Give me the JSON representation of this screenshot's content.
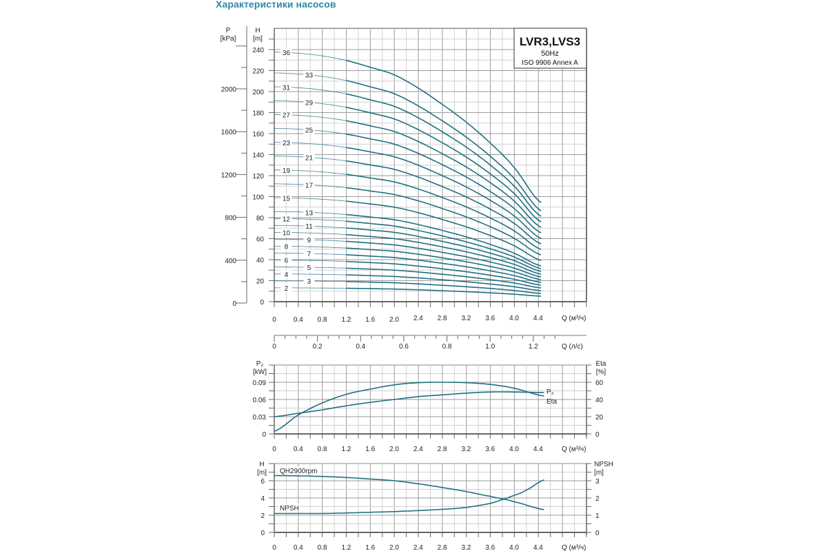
{
  "page": {
    "title": "Характеристики насосов"
  },
  "colors": {
    "curve": "#1d6f82",
    "title": "#2b8aa6",
    "grid_major": "#9a9a9a",
    "grid_minor": "#d0d0d0",
    "axis": "#666666"
  },
  "chart_data": [
    {
      "type": "line",
      "name": "head-curves",
      "title": "LVR3,LVS3",
      "subtitle": "50Hz",
      "note": "ISO 9906 Annex A",
      "xlabel": "Q (м³/ч)",
      "xlabel2": "Q (л/с)",
      "ylabel": "H",
      "ylabel_unit": "[m]",
      "ylabel2": "P",
      "ylabel2_unit": "[kPa]",
      "xlim": [
        0,
        5.2
      ],
      "ylim": [
        0,
        260
      ],
      "x_ticks": [
        "0",
        "0.4",
        "0.8",
        "1.2",
        "1.6",
        "2.0",
        "2.4",
        "2.8",
        "3.2",
        "3.6",
        "4.0",
        "4.4"
      ],
      "x_tick_values": [
        0,
        0.4,
        0.8,
        1.2,
        1.6,
        2.0,
        2.4,
        2.8,
        3.2,
        3.6,
        4.0,
        4.4
      ],
      "x2_ticks": [
        "0",
        "0.2",
        "0.4",
        "0.6",
        "0.8",
        "1.0",
        "1.2"
      ],
      "x2_tick_values": [
        0,
        0.2,
        0.4,
        0.6,
        0.8,
        1.0,
        1.2
      ],
      "y_ticks": [
        "0",
        "20",
        "40",
        "60",
        "80",
        "100",
        "120",
        "140",
        "160",
        "180",
        "200",
        "220",
        "240"
      ],
      "y_tick_values": [
        0,
        20,
        40,
        60,
        80,
        100,
        120,
        140,
        160,
        180,
        200,
        220,
        240
      ],
      "y2_ticks": [
        "0",
        "400",
        "800",
        "1200",
        "1600",
        "2000"
      ],
      "y2_tick_values": [
        0,
        400,
        800,
        1200,
        1600,
        2000
      ],
      "grid": true,
      "stage_head_per_stage_q": [
        0,
        0.4,
        0.8,
        1.2,
        1.6,
        2.0,
        2.4,
        2.8,
        3.2,
        3.6,
        4.0,
        4.45
      ],
      "stage_head_per_stage_h": [
        6.6,
        6.57,
        6.5,
        6.38,
        6.2,
        6.0,
        5.65,
        5.22,
        4.75,
        4.2,
        3.55,
        2.62
      ],
      "series": [
        {
          "name": "2",
          "stages": 2
        },
        {
          "name": "3",
          "stages": 3
        },
        {
          "name": "4",
          "stages": 4
        },
        {
          "name": "5",
          "stages": 5
        },
        {
          "name": "6",
          "stages": 6
        },
        {
          "name": "7",
          "stages": 7
        },
        {
          "name": "8",
          "stages": 8
        },
        {
          "name": "9",
          "stages": 9
        },
        {
          "name": "10",
          "stages": 10
        },
        {
          "name": "11",
          "stages": 11
        },
        {
          "name": "12",
          "stages": 12
        },
        {
          "name": "13",
          "stages": 13
        },
        {
          "name": "15",
          "stages": 15
        },
        {
          "name": "17",
          "stages": 17
        },
        {
          "name": "19",
          "stages": 19
        },
        {
          "name": "21",
          "stages": 21
        },
        {
          "name": "23",
          "stages": 23
        },
        {
          "name": "25",
          "stages": 25
        },
        {
          "name": "27",
          "stages": 27
        },
        {
          "name": "29",
          "stages": 29
        },
        {
          "name": "31",
          "stages": 31
        },
        {
          "name": "33",
          "stages": 33
        },
        {
          "name": "36",
          "stages": 36
        }
      ]
    },
    {
      "type": "line",
      "name": "power-efficiency",
      "xlabel": "Q (м³/ч)",
      "ylabel": "P₂",
      "ylabel_unit": "[kW]",
      "ylabel2": "Eta",
      "ylabel2_unit": "[%]",
      "xlim": [
        0,
        5.2
      ],
      "ylim": [
        0,
        0.12
      ],
      "y2lim": [
        0,
        80
      ],
      "x_ticks": [
        "0",
        "0.4",
        "0.8",
        "1.2",
        "1.6",
        "2.0",
        "2.4",
        "2.8",
        "3.2",
        "3.6",
        "4.0",
        "4.4"
      ],
      "x_tick_values": [
        0,
        0.4,
        0.8,
        1.2,
        1.6,
        2.0,
        2.4,
        2.8,
        3.2,
        3.6,
        4.0,
        4.4
      ],
      "y_ticks": [
        "0",
        "0.03",
        "0.06",
        "0.09"
      ],
      "y_tick_values": [
        0,
        0.03,
        0.06,
        0.09
      ],
      "y2_ticks": [
        "0",
        "20",
        "40",
        "60"
      ],
      "y2_tick_values": [
        0,
        20,
        40,
        60
      ],
      "grid": true,
      "series": [
        {
          "name": "P₂",
          "axis": "left",
          "x": [
            0,
            0.4,
            0.8,
            1.2,
            1.6,
            2.0,
            2.4,
            2.8,
            3.2,
            3.6,
            4.0,
            4.5
          ],
          "y": [
            0.03,
            0.036,
            0.042,
            0.049,
            0.055,
            0.06,
            0.065,
            0.068,
            0.071,
            0.073,
            0.073,
            0.072
          ]
        },
        {
          "name": "Eta",
          "axis": "right",
          "x": [
            0,
            0.4,
            0.8,
            1.2,
            1.6,
            2.0,
            2.4,
            2.8,
            3.2,
            3.6,
            4.0,
            4.5
          ],
          "y": [
            3,
            22,
            36,
            46,
            52,
            57,
            59.5,
            60,
            59.5,
            57.5,
            53,
            44
          ]
        }
      ]
    },
    {
      "type": "line",
      "name": "single-stage-npsh",
      "xlabel": "Q (м³/ч)",
      "ylabel": "H",
      "ylabel_unit": "[m]",
      "ylabel2": "NPSH",
      "ylabel2_unit": "[m]",
      "xlim": [
        0,
        5.2
      ],
      "ylim": [
        0,
        8
      ],
      "y2lim": [
        0,
        4
      ],
      "x_ticks": [
        "0",
        "0.4",
        "0.8",
        "1.2",
        "1.6",
        "2.0",
        "2.4",
        "2.8",
        "3.2",
        "3.6",
        "4.0",
        "4.4"
      ],
      "x_tick_values": [
        0,
        0.4,
        0.8,
        1.2,
        1.6,
        2.0,
        2.4,
        2.8,
        3.2,
        3.6,
        4.0,
        4.4
      ],
      "y_ticks": [
        "0",
        "2",
        "4",
        "6"
      ],
      "y_tick_values": [
        0,
        2,
        4,
        6
      ],
      "y2_ticks": [
        "0",
        "1",
        "2",
        "3"
      ],
      "y2_tick_values": [
        0,
        1,
        2,
        3
      ],
      "grid": true,
      "series": [
        {
          "name": "QH2900rpm",
          "axis": "left",
          "x": [
            0,
            0.4,
            0.8,
            1.2,
            1.6,
            2.0,
            2.4,
            2.8,
            3.2,
            3.6,
            3.8,
            4.0,
            4.5
          ],
          "y": [
            6.6,
            6.57,
            6.5,
            6.38,
            6.2,
            6.0,
            5.65,
            5.22,
            4.75,
            4.2,
            3.9,
            3.55,
            2.65
          ]
        },
        {
          "name": "NPSH",
          "axis": "right",
          "x": [
            0,
            0.4,
            0.8,
            1.2,
            1.6,
            2.0,
            2.4,
            2.8,
            3.2,
            3.6,
            3.85,
            4.0,
            4.2,
            4.5
          ],
          "y": [
            1.1,
            1.1,
            1.1,
            1.13,
            1.17,
            1.21,
            1.27,
            1.34,
            1.45,
            1.68,
            1.95,
            2.15,
            2.45,
            3.05
          ]
        }
      ]
    }
  ]
}
